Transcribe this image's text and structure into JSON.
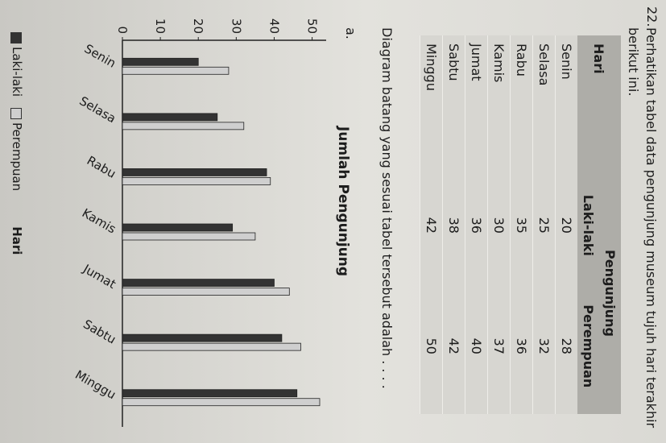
{
  "question": {
    "number": "22.",
    "text": "Perhatikan tabel data pengunjung museum tujuh hari terakhir berikut ini."
  },
  "table": {
    "col_day": "Hari",
    "col_group": "Pengunjung",
    "col_male": "Laki-laki",
    "col_female": "Perempuan",
    "rows": [
      {
        "day": "Senin",
        "male": "20",
        "female": "28"
      },
      {
        "day": "Selasa",
        "male": "25",
        "female": "32"
      },
      {
        "day": "Rabu",
        "male": "35",
        "female": "36"
      },
      {
        "day": "Kamis",
        "male": "30",
        "female": "37"
      },
      {
        "day": "Jumat",
        "male": "36",
        "female": "40"
      },
      {
        "day": "Sabtu",
        "male": "38",
        "female": "42"
      },
      {
        "day": "Minggu",
        "male": "42",
        "female": "50"
      }
    ]
  },
  "prompt": "Diagram batang yang sesuai tabel tersebut adalah . . . .",
  "option_label": "a.",
  "chart_data": {
    "type": "bar",
    "title": "Jumlah Pengunjung",
    "xlabel": "Hari",
    "ylabel": "",
    "categories": [
      "Senin",
      "Selasa",
      "Rabu",
      "Kamis",
      "Jumat",
      "Sabtu",
      "Minggu"
    ],
    "series": [
      {
        "name": "Laki-laki",
        "values": [
          20,
          25,
          38,
          29,
          40,
          42,
          46
        ],
        "color": "#333333"
      },
      {
        "name": "Perempuan",
        "values": [
          28,
          32,
          39,
          35,
          44,
          47,
          52
        ],
        "color": "#cfcfcf"
      }
    ],
    "yticks": [
      "0",
      "10",
      "20",
      "30",
      "40",
      "50"
    ],
    "ylim": [
      0,
      52
    ],
    "grid": false,
    "legend": "bottom"
  }
}
